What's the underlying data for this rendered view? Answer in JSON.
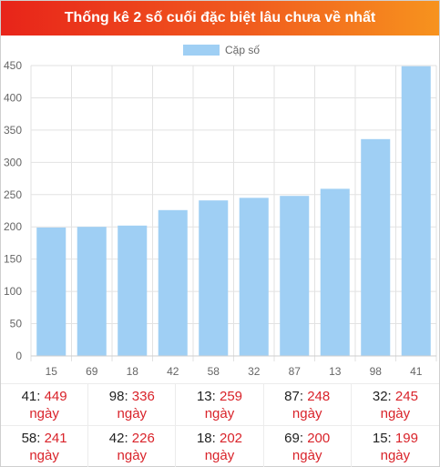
{
  "header": {
    "title": "Thống kê 2 số cuối đặc biệt lâu chưa về nhất"
  },
  "colors": {
    "bar": "#9fcff4",
    "header_start": "#e8241a",
    "header_end": "#f7931e",
    "value": "#d9232a"
  },
  "chart_data": {
    "type": "bar",
    "title": "Thống kê 2 số cuối đặc biệt lâu chưa về nhất",
    "categories": [
      "15",
      "69",
      "18",
      "42",
      "58",
      "32",
      "87",
      "13",
      "98",
      "41"
    ],
    "series": [
      {
        "name": "Cặp số",
        "values": [
          199,
          200,
          202,
          226,
          241,
          245,
          248,
          259,
          336,
          449
        ]
      }
    ],
    "ylim": [
      0,
      450
    ],
    "yticks": [
      0,
      50,
      100,
      150,
      200,
      250,
      300,
      350,
      400,
      450
    ],
    "grid": true,
    "legend": "top-center",
    "xlabel": "",
    "ylabel": ""
  },
  "stats": {
    "separator": ":",
    "unit": "ngày",
    "items": [
      {
        "pair": "41",
        "days": "449"
      },
      {
        "pair": "98",
        "days": "336"
      },
      {
        "pair": "13",
        "days": "259"
      },
      {
        "pair": "87",
        "days": "248"
      },
      {
        "pair": "32",
        "days": "245"
      },
      {
        "pair": "58",
        "days": "241"
      },
      {
        "pair": "42",
        "days": "226"
      },
      {
        "pair": "18",
        "days": "202"
      },
      {
        "pair": "69",
        "days": "200"
      },
      {
        "pair": "15",
        "days": "199"
      }
    ]
  }
}
